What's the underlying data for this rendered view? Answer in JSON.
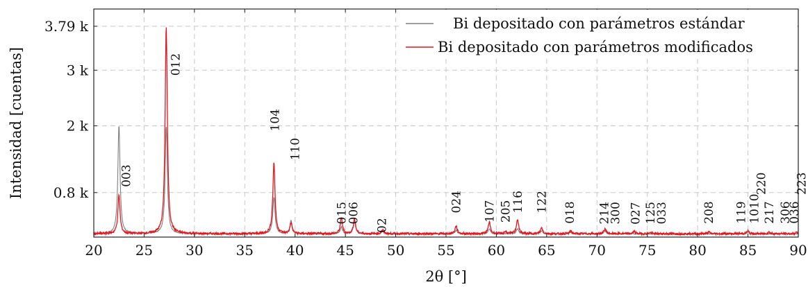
{
  "chart_data": {
    "type": "line",
    "xlabel": "2θ [°]",
    "ylabel": "Intensidad [cuentas]",
    "xlim": [
      20,
      90
    ],
    "ylim": [
      0,
      4100
    ],
    "xticks": [
      20,
      25,
      30,
      35,
      40,
      45,
      50,
      55,
      60,
      65,
      70,
      75,
      80,
      85,
      90
    ],
    "yticks": [
      {
        "value": 800,
        "label": "0.8 k"
      },
      {
        "value": 2000,
        "label": "2 k"
      },
      {
        "value": 3000,
        "label": "3 k"
      },
      {
        "value": 3790,
        "label": "3.79 k"
      }
    ],
    "grid": true,
    "legend_position": "top-right",
    "baseline": 60,
    "series": [
      {
        "name": "Bi depositado con parámetros estándar",
        "color": "#7f7f7f",
        "peaks": [
          {
            "x": 22.5,
            "y": 2020
          },
          {
            "x": 27.2,
            "y": 2000
          },
          {
            "x": 37.9,
            "y": 720
          },
          {
            "x": 39.6,
            "y": 300
          },
          {
            "x": 44.6,
            "y": 180
          },
          {
            "x": 45.9,
            "y": 300
          },
          {
            "x": 48.7,
            "y": 110
          },
          {
            "x": 56.0,
            "y": 120
          },
          {
            "x": 59.3,
            "y": 150
          },
          {
            "x": 62.1,
            "y": 150
          },
          {
            "x": 64.5,
            "y": 110
          },
          {
            "x": 67.4,
            "y": 90
          },
          {
            "x": 70.8,
            "y": 110
          },
          {
            "x": 85.0,
            "y": 90
          }
        ]
      },
      {
        "name": "Bi depositado con parámetros modificados",
        "color": "#e8141c",
        "peaks": [
          {
            "x": 22.5,
            "y": 750
          },
          {
            "x": 27.2,
            "y": 3790
          },
          {
            "x": 37.9,
            "y": 1340
          },
          {
            "x": 39.6,
            "y": 250
          },
          {
            "x": 44.6,
            "y": 340
          },
          {
            "x": 45.9,
            "y": 330
          },
          {
            "x": 48.7,
            "y": 130
          },
          {
            "x": 56.0,
            "y": 200
          },
          {
            "x": 59.3,
            "y": 270
          },
          {
            "x": 60.9,
            "y": 100
          },
          {
            "x": 62.1,
            "y": 320
          },
          {
            "x": 64.5,
            "y": 170
          },
          {
            "x": 67.4,
            "y": 110
          },
          {
            "x": 70.8,
            "y": 150
          },
          {
            "x": 73.7,
            "y": 100
          },
          {
            "x": 75.3,
            "y": 80
          },
          {
            "x": 81.1,
            "y": 90
          },
          {
            "x": 85.0,
            "y": 110
          },
          {
            "x": 87.1,
            "y": 90
          },
          {
            "x": 89.8,
            "y": 80
          }
        ]
      }
    ],
    "annotations": [
      {
        "text": "003",
        "x": 23.2,
        "y": 900
      },
      {
        "text": "012",
        "x": 28.1,
        "y": 2900
      },
      {
        "text": "104",
        "x": 38.0,
        "y": 1900
      },
      {
        "text": "110",
        "x": 40.0,
        "y": 1380
      },
      {
        "text": "015",
        "x": 44.6,
        "y": 230
      },
      {
        "text": "006",
        "x": 45.8,
        "y": 230
      },
      {
        "text": "02",
        "x": 48.6,
        "y": 75
      },
      {
        "text": "024",
        "x": 56.0,
        "y": 430
      },
      {
        "text": "107",
        "x": 59.3,
        "y": 260
      },
      {
        "text": "205",
        "x": 60.9,
        "y": 260
      },
      {
        "text": "116",
        "x": 62.1,
        "y": 430
      },
      {
        "text": "122",
        "x": 64.5,
        "y": 430
      },
      {
        "text": "018",
        "x": 67.3,
        "y": 240
      },
      {
        "text": "214",
        "x": 70.7,
        "y": 230
      },
      {
        "text": "300",
        "x": 71.8,
        "y": 230
      },
      {
        "text": "027",
        "x": 73.8,
        "y": 225
      },
      {
        "text": "125",
        "x": 75.3,
        "y": 230
      },
      {
        "text": "033",
        "x": 76.4,
        "y": 230
      },
      {
        "text": "208",
        "x": 81.1,
        "y": 240
      },
      {
        "text": "119",
        "x": 84.3,
        "y": 240
      },
      {
        "text": "1010",
        "x": 85.6,
        "y": 240
      },
      {
        "text": "220",
        "x": 86.3,
        "y": 760
      },
      {
        "text": "217",
        "x": 87.1,
        "y": 240
      },
      {
        "text": "306",
        "x": 88.7,
        "y": 240
      },
      {
        "text": "036",
        "x": 89.6,
        "y": 240
      },
      {
        "text": "223",
        "x": 90.3,
        "y": 760
      }
    ]
  }
}
